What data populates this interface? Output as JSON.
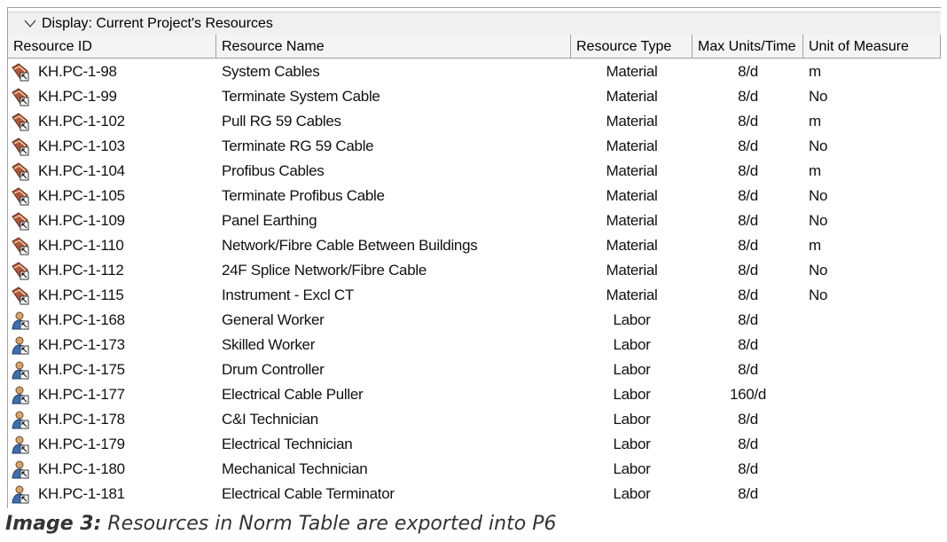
{
  "panel": {
    "title": "Display: Current Project's Resources"
  },
  "table": {
    "columns": [
      "Resource ID",
      "Resource Name",
      "Resource Type",
      "Max Units/Time",
      "Unit of Measure"
    ],
    "rows": [
      [
        "KH.PC-1-98",
        "System Cables",
        "Material",
        "8/d",
        "m"
      ],
      [
        "KH.PC-1-99",
        "Terminate System Cable",
        "Material",
        "8/d",
        "No"
      ],
      [
        "KH.PC-1-102",
        "Pull RG 59 Cables",
        "Material",
        "8/d",
        "m"
      ],
      [
        "KH.PC-1-103",
        "Terminate RG 59 Cable",
        "Material",
        "8/d",
        "No"
      ],
      [
        "KH.PC-1-104",
        "Profibus Cables",
        "Material",
        "8/d",
        "m"
      ],
      [
        "KH.PC-1-105",
        "Terminate Profibus Cable",
        "Material",
        "8/d",
        "No"
      ],
      [
        "KH.PC-1-109",
        "Panel Earthing",
        "Material",
        "8/d",
        "No"
      ],
      [
        "KH.PC-1-110",
        "Network/Fibre Cable Between Buildings",
        "Material",
        "8/d",
        "m"
      ],
      [
        "KH.PC-1-112",
        "24F Splice Network/Fibre Cable",
        "Material",
        "8/d",
        "No"
      ],
      [
        "KH.PC-1-115",
        "Instrument - Excl CT",
        "Material",
        "8/d",
        "No"
      ],
      [
        "KH.PC-1-168",
        "General Worker",
        "Labor",
        "8/d"
      ],
      [
        "KH.PC-1-173",
        "Skilled Worker",
        "Labor",
        "8/d"
      ],
      [
        "KH.PC-1-175",
        "Drum Controller",
        "Labor",
        "8/d"
      ],
      [
        "KH.PC-1-177",
        "Electrical Cable Puller",
        "Labor",
        "160/d"
      ],
      [
        "KH.PC-1-178",
        "C&I Technician",
        "Labor",
        "8/d"
      ],
      [
        "KH.PC-1-179",
        "Electrical Technician",
        "Labor",
        "8/d"
      ],
      [
        "KH.PC-1-180",
        "Mechanical Technician",
        "Labor",
        "8/d"
      ],
      [
        "KH.PC-1-181",
        "Electrical Cable Terminator",
        "Labor",
        "8/d"
      ]
    ]
  },
  "caption": {
    "label": "Image 3:",
    "text": "Resources in Norm Table are exported into P6"
  }
}
